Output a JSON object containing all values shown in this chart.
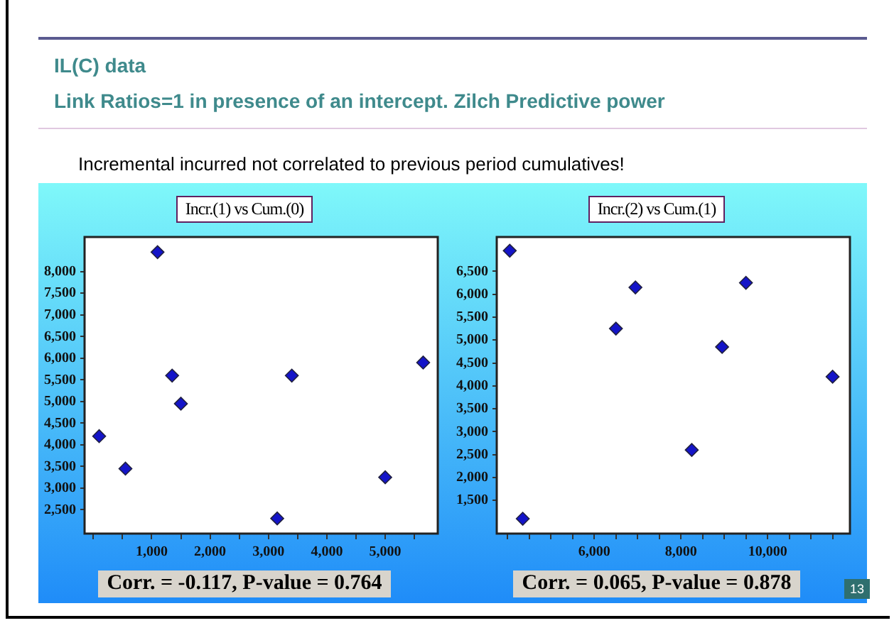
{
  "chart_data": [
    {
      "type": "scatter",
      "title": "Incr.(1) vs Cum.(0)",
      "annotations": [
        "IL(C) data",
        "Link Ratios=1 in presence of an intercept. Zilch Predictive power",
        "Incremental incurred not correlated to previous period cumulatives!",
        "Corr. = -0.117, P-value = 0.764"
      ],
      "series": [
        {
          "color": "#1414c8",
          "x": [
            100,
            550,
            1100,
            1350,
            1500,
            3150,
            3400,
            5000,
            5650
          ],
          "values": [
            4200,
            3450,
            8450,
            5600,
            4950,
            2300,
            5600,
            3250,
            5900
          ]
        }
      ],
      "xlim": [
        -150,
        5900
      ],
      "xticks": [
        {
          "value": 0,
          "label": null
        },
        {
          "value": 500,
          "label": null
        },
        {
          "value": 1000,
          "label": "1,000"
        },
        {
          "value": 1500,
          "label": null
        },
        {
          "value": 2000,
          "label": "2,000"
        },
        {
          "value": 2500,
          "label": null
        },
        {
          "value": 3000,
          "label": "3,000"
        },
        {
          "value": 3500,
          "label": null
        },
        {
          "value": 4000,
          "label": "4,000"
        },
        {
          "value": 4500,
          "label": null
        },
        {
          "value": 5000,
          "label": "5,000"
        },
        {
          "value": 5500,
          "label": null
        }
      ],
      "ylim": [
        1950,
        8800
      ],
      "yticks": [
        {
          "value": 2500,
          "label": "2,500"
        },
        {
          "value": 3000,
          "label": "3,000"
        },
        {
          "value": 3500,
          "label": "3,500"
        },
        {
          "value": 4000,
          "label": "4,000"
        },
        {
          "value": 4500,
          "label": "4,500"
        },
        {
          "value": 5000,
          "label": "5,000"
        },
        {
          "value": 5500,
          "label": "5,500"
        },
        {
          "value": 6000,
          "label": "6,000"
        },
        {
          "value": 6500,
          "label": "6,500"
        },
        {
          "value": 7000,
          "label": "7,000"
        },
        {
          "value": 7500,
          "label": "7,500"
        },
        {
          "value": 8000,
          "label": "8,000"
        }
      ],
      "grid": false,
      "legend": false,
      "marker": "diamond"
    },
    {
      "type": "scatter",
      "title": "Incr.(2) vs Cum.(1)",
      "annotations": [
        "Corr. = 0.065, P-value = 0.878",
        "13"
      ],
      "series": [
        {
          "color": "#1414c8",
          "x": [
            4050,
            4350,
            6500,
            6950,
            8250,
            8950,
            9500,
            11500
          ],
          "values": [
            6950,
            1100,
            5250,
            6150,
            2600,
            4850,
            6250,
            4200
          ]
        }
      ],
      "xlim": [
        3750,
        11900
      ],
      "xticks": [
        {
          "value": 4000,
          "label": null
        },
        {
          "value": 4500,
          "label": null
        },
        {
          "value": 5000,
          "label": null
        },
        {
          "value": 5500,
          "label": null
        },
        {
          "value": 6000,
          "label": "6,000"
        },
        {
          "value": 6500,
          "label": null
        },
        {
          "value": 7000,
          "label": null
        },
        {
          "value": 7500,
          "label": null
        },
        {
          "value": 8000,
          "label": "8,000"
        },
        {
          "value": 8500,
          "label": null
        },
        {
          "value": 9000,
          "label": null
        },
        {
          "value": 9500,
          "label": null
        },
        {
          "value": 10000,
          "label": "10,000"
        },
        {
          "value": 10500,
          "label": null
        },
        {
          "value": 11000,
          "label": null
        },
        {
          "value": 11500,
          "label": null
        }
      ],
      "ylim": [
        775,
        7250
      ],
      "yticks": [
        {
          "value": 1500,
          "label": "1,500"
        },
        {
          "value": 2000,
          "label": "2,000"
        },
        {
          "value": 2500,
          "label": "2,500"
        },
        {
          "value": 3000,
          "label": "3,000"
        },
        {
          "value": 3500,
          "label": "3,500"
        },
        {
          "value": 4000,
          "label": "4,000"
        },
        {
          "value": 4500,
          "label": "4,500"
        },
        {
          "value": 5000,
          "label": "5,000"
        },
        {
          "value": 5500,
          "label": "5,500"
        },
        {
          "value": 6000,
          "label": "6,000"
        },
        {
          "value": 6500,
          "label": "6,500"
        }
      ],
      "grid": false,
      "legend": false,
      "marker": "diamond"
    }
  ]
}
